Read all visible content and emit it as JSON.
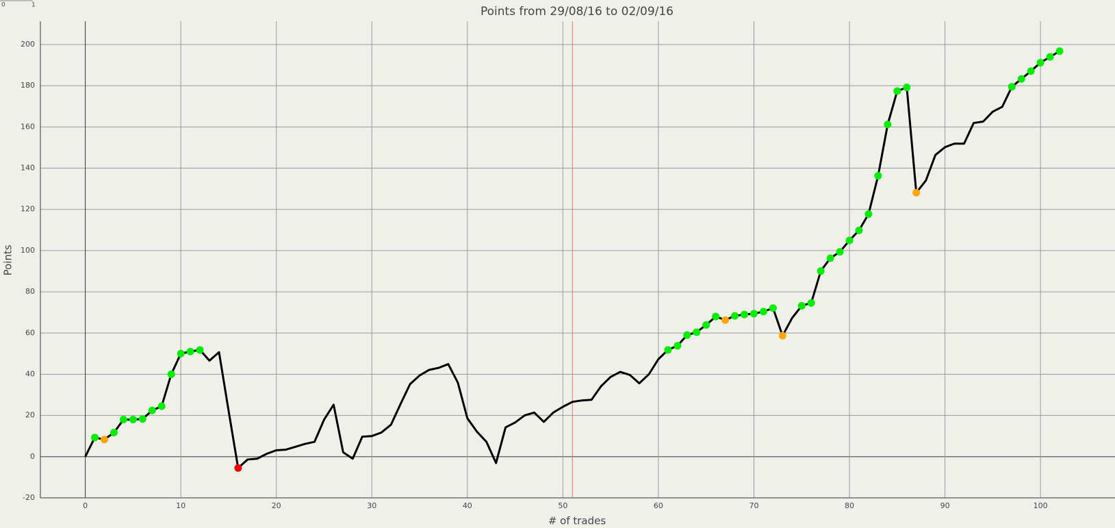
{
  "corner_labels": [
    "0",
    "1"
  ],
  "chart_data": {
    "type": "line",
    "title": "Points from 29/08/16 to 02/09/16",
    "xlabel": "# of trades",
    "ylabel": "Points",
    "x": [
      0,
      1,
      2,
      3,
      4,
      5,
      6,
      7,
      8,
      9,
      10,
      11,
      12,
      13,
      14,
      15,
      16,
      17,
      18,
      19,
      20,
      21,
      22,
      23,
      24,
      25,
      26,
      27,
      28,
      29,
      30,
      31,
      32,
      33,
      34,
      35,
      36,
      37,
      38,
      39,
      40,
      41,
      42,
      43,
      44,
      45,
      46,
      47,
      48,
      49,
      50,
      51,
      52,
      53,
      54,
      55,
      56,
      57,
      58,
      59,
      60,
      61,
      62,
      63,
      64,
      65,
      66,
      67,
      68,
      69,
      70,
      71,
      72,
      73,
      74,
      75,
      76,
      77,
      78,
      79,
      80,
      81,
      82,
      83,
      84,
      85,
      86,
      87,
      88,
      89,
      90,
      91,
      92,
      93,
      94,
      95,
      96,
      97,
      98,
      99,
      100,
      101,
      102
    ],
    "series": [
      {
        "color": "#000000",
        "values": [
          0,
          9.3,
          8.3,
          11.7,
          18,
          18,
          18.3,
          22.4,
          24.5,
          40,
          50,
          51,
          51.8,
          46.6,
          50.7,
          22.4,
          -5.5,
          -1.4,
          -1,
          1.4,
          3.1,
          3.4,
          4.8,
          6.2,
          7.2,
          18,
          25.2,
          2.1,
          -1,
          9.7,
          10,
          11.7,
          15.5,
          25.5,
          35.2,
          39.4,
          42.1,
          43.1,
          44.9,
          35.9,
          18.6,
          12.1,
          7.2,
          -3.1,
          14.2,
          16.6,
          20,
          21.4,
          16.9,
          21.4,
          24.2,
          26.6,
          27.3,
          27.6,
          34.2,
          38.7,
          41.1,
          39.7,
          35.6,
          40,
          47.3,
          51.8,
          53.8,
          59,
          60.4,
          63.9,
          68,
          66.3,
          68.3,
          69,
          69.4,
          70.4,
          72.1,
          58.7,
          67.3,
          73.2,
          74.6,
          90.1,
          96.3,
          99.4,
          104.9,
          109.8,
          117.7,
          136.3,
          161.2,
          177.4,
          179.2,
          128.1,
          134,
          146.4,
          150.2,
          151.9,
          151.9,
          161.9,
          162.6,
          167.4,
          169.8,
          179.5,
          183.3,
          187.1,
          191.2,
          194,
          196.8
        ],
        "marker_colors": [
          null,
          "#00ee00",
          "#ffa500",
          "#00ee00",
          "#00ee00",
          "#00ee00",
          "#00ee00",
          "#00ee00",
          "#00ee00",
          "#00ee00",
          "#00ee00",
          "#00ee00",
          "#00ee00",
          null,
          null,
          null,
          "#ee0000",
          null,
          null,
          null,
          null,
          null,
          null,
          null,
          null,
          null,
          null,
          null,
          null,
          null,
          null,
          null,
          null,
          null,
          null,
          null,
          null,
          null,
          null,
          null,
          null,
          null,
          null,
          null,
          null,
          null,
          null,
          null,
          null,
          null,
          null,
          null,
          null,
          null,
          null,
          null,
          null,
          null,
          null,
          null,
          null,
          "#00ee00",
          "#00ee00",
          "#00ee00",
          "#00ee00",
          "#00ee00",
          "#00ee00",
          "#ffa500",
          "#00ee00",
          "#00ee00",
          "#00ee00",
          "#00ee00",
          "#00ee00",
          "#ffa500",
          null,
          "#00ee00",
          "#00ee00",
          "#00ee00",
          "#00ee00",
          "#00ee00",
          "#00ee00",
          "#00ee00",
          "#00ee00",
          "#00ee00",
          "#00ee00",
          "#00ee00",
          "#00ee00",
          "#ffa500",
          null,
          null,
          null,
          null,
          null,
          null,
          null,
          null,
          null,
          "#00ee00",
          "#00ee00",
          "#00ee00",
          "#00ee00",
          "#00ee00",
          "#00ee00"
        ]
      }
    ],
    "vline": {
      "x": 51,
      "color": "#f07070"
    },
    "xlim": [
      -4.7,
      107.8
    ],
    "ylim": [
      -20,
      211.3
    ],
    "xticks": [
      0,
      10,
      20,
      30,
      40,
      50,
      60,
      70,
      80,
      90,
      100
    ],
    "yticks": [
      -20,
      0,
      20,
      40,
      60,
      80,
      100,
      120,
      140,
      160,
      180,
      200
    ],
    "grid": true
  }
}
